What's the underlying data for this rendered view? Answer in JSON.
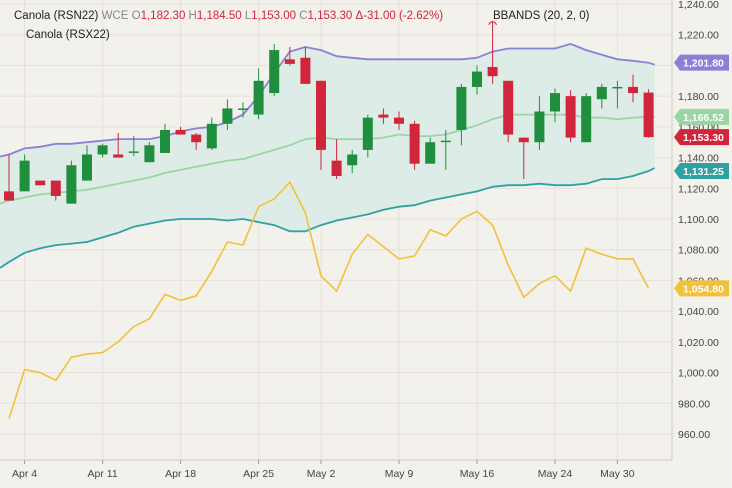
{
  "header": {
    "symbol": "Canola (RSN22)",
    "exchange": "WCE",
    "open_label": "O",
    "open": "1,182.30",
    "high_label": "H",
    "high": "1,184.50",
    "low_label": "L",
    "low": "1,153.00",
    "close_label": "C",
    "close": "1,153.30",
    "change": "Δ-31.00 (-2.62%)",
    "comparison": "Canola (RSX22)",
    "indicator": "BBANDS (20, 2, 0)"
  },
  "colors": {
    "background": "#f3f1ec",
    "band_fill": "#d9ebe6",
    "upper_band": "#8c7fd6",
    "middle_band": "#9ad6a4",
    "lower_band": "#2fa1a3",
    "comparison_line": "#f2c13a",
    "up_candle": "#1f8f3e",
    "down_candle": "#d0253a"
  },
  "price_tags": [
    {
      "value": 1201.8,
      "text": "1,201.80",
      "color": "#8c7fd6",
      "name": "upper-band-price-tag"
    },
    {
      "value": 1166.52,
      "text": "1,166.52",
      "color": "#9ad6a4",
      "name": "middle-band-price-tag"
    },
    {
      "value": 1153.3,
      "text": "1,153.30",
      "color": "#d0253a",
      "name": "last-price-tag"
    },
    {
      "value": 1131.25,
      "text": "1,131.25",
      "color": "#2fa1a3",
      "name": "lower-band-price-tag"
    },
    {
      "value": 1054.8,
      "text": "1,054.80",
      "color": "#f2c13a",
      "name": "comparison-price-tag"
    }
  ],
  "chart_data": {
    "type": "candlestick",
    "ylim": [
      950,
      1240
    ],
    "y_ticks": [
      960,
      980,
      1000,
      1020,
      1040,
      1060,
      1080,
      1100,
      1120,
      1140,
      1160,
      1180,
      1200,
      1220,
      1240
    ],
    "y_tick_labels": [
      "960.00",
      "980.00",
      "1,000.00",
      "1,020.00",
      "1,040.00",
      "1,060.00",
      "1,080.00",
      "1,100.00",
      "1,120.00",
      "1,140.00",
      "1,160.00",
      "1,180.00",
      "1,200.00",
      "1,220.00",
      "1,240.00"
    ],
    "x_tick_labels": [
      {
        "index": 1,
        "label": "Apr 4"
      },
      {
        "index": 6,
        "label": "Apr 11"
      },
      {
        "index": 11,
        "label": "Apr 18"
      },
      {
        "index": 16,
        "label": "Apr 25"
      },
      {
        "index": 20,
        "label": "May 2"
      },
      {
        "index": 25,
        "label": "May 9"
      },
      {
        "index": 30,
        "label": "May 16"
      },
      {
        "index": 35,
        "label": "May 24"
      },
      {
        "index": 39,
        "label": "May 30"
      }
    ],
    "candles": [
      {
        "o": 1118,
        "h": 1142,
        "l": 1112,
        "c": 1112
      },
      {
        "o": 1118,
        "h": 1142,
        "l": 1118,
        "c": 1138
      },
      {
        "o": 1125,
        "h": 1125,
        "l": 1122,
        "c": 1122
      },
      {
        "o": 1125,
        "h": 1125,
        "l": 1112,
        "c": 1115
      },
      {
        "o": 1110,
        "h": 1138,
        "l": 1110,
        "c": 1135
      },
      {
        "o": 1125,
        "h": 1148,
        "l": 1125,
        "c": 1142
      },
      {
        "o": 1142,
        "h": 1149,
        "l": 1140,
        "c": 1148
      },
      {
        "o": 1142,
        "h": 1156,
        "l": 1140,
        "c": 1140
      },
      {
        "o": 1144,
        "h": 1154,
        "l": 1141,
        "c": 1144
      },
      {
        "o": 1137,
        "h": 1150,
        "l": 1137,
        "c": 1148
      },
      {
        "o": 1143,
        "h": 1162,
        "l": 1143,
        "c": 1158
      },
      {
        "o": 1158,
        "h": 1160,
        "l": 1155,
        "c": 1155
      },
      {
        "o": 1155,
        "h": 1156,
        "l": 1145,
        "c": 1150
      },
      {
        "o": 1146,
        "h": 1166,
        "l": 1145,
        "c": 1162
      },
      {
        "o": 1162,
        "h": 1178,
        "l": 1158,
        "c": 1172
      },
      {
        "o": 1172,
        "h": 1176,
        "l": 1166,
        "c": 1172
      },
      {
        "o": 1168,
        "h": 1198,
        "l": 1165,
        "c": 1190
      },
      {
        "o": 1182,
        "h": 1214,
        "l": 1180,
        "c": 1210
      },
      {
        "o": 1204,
        "h": 1212,
        "l": 1200,
        "c": 1201
      },
      {
        "o": 1205,
        "h": 1212,
        "l": 1188,
        "c": 1188
      },
      {
        "o": 1190,
        "h": 1190,
        "l": 1132,
        "c": 1145
      },
      {
        "o": 1138,
        "h": 1152,
        "l": 1126,
        "c": 1128
      },
      {
        "o": 1135,
        "h": 1145,
        "l": 1130,
        "c": 1142
      },
      {
        "o": 1145,
        "h": 1168,
        "l": 1140,
        "c": 1166
      },
      {
        "o": 1168,
        "h": 1172,
        "l": 1162,
        "c": 1166
      },
      {
        "o": 1166,
        "h": 1170,
        "l": 1158,
        "c": 1162
      },
      {
        "o": 1162,
        "h": 1164,
        "l": 1132,
        "c": 1136
      },
      {
        "o": 1136,
        "h": 1153,
        "l": 1136,
        "c": 1150
      },
      {
        "o": 1151,
        "h": 1158,
        "l": 1132,
        "c": 1151
      },
      {
        "o": 1158,
        "h": 1188,
        "l": 1148,
        "c": 1186
      },
      {
        "o": 1186,
        "h": 1200,
        "l": 1181,
        "c": 1196
      },
      {
        "o": 1199,
        "h": 1220,
        "l": 1188,
        "c": 1193
      },
      {
        "o": 1190,
        "h": 1190,
        "l": 1150,
        "c": 1155
      },
      {
        "o": 1153,
        "h": 1153,
        "l": 1126,
        "c": 1150
      },
      {
        "o": 1150,
        "h": 1180,
        "l": 1145,
        "c": 1170
      },
      {
        "o": 1170,
        "h": 1185,
        "l": 1163,
        "c": 1182
      },
      {
        "o": 1180,
        "h": 1184,
        "l": 1150,
        "c": 1153
      },
      {
        "o": 1150,
        "h": 1182,
        "l": 1150,
        "c": 1180
      },
      {
        "o": 1178,
        "h": 1188,
        "l": 1172,
        "c": 1186
      },
      {
        "o": 1186,
        "h": 1190,
        "l": 1172,
        "c": 1186
      },
      {
        "o": 1186,
        "h": 1194,
        "l": 1176,
        "c": 1182
      },
      {
        "o": 1182.3,
        "h": 1184.5,
        "l": 1153.0,
        "c": 1153.3
      }
    ],
    "series": [
      {
        "name": "Upper band",
        "values": [
          1142,
          1146,
          1147,
          1149,
          1149,
          1150,
          1151,
          1152,
          1152,
          1152,
          1154,
          1157,
          1159,
          1160,
          1163,
          1168,
          1180,
          1195,
          1209,
          1212,
          1210,
          1206,
          1205,
          1204,
          1204,
          1204,
          1204,
          1204,
          1204,
          1204,
          1205,
          1209,
          1211,
          1211,
          1211,
          1211,
          1214,
          1210,
          1207,
          1204,
          1203,
          1201.8
        ]
      },
      {
        "name": "Middle band",
        "values": [
          1112,
          1114,
          1116,
          1117,
          1118,
          1119,
          1121,
          1123,
          1125,
          1127,
          1130,
          1132,
          1134,
          1136,
          1138,
          1139,
          1142,
          1145,
          1148,
          1152,
          1153,
          1152,
          1152,
          1152,
          1153,
          1155,
          1154,
          1154,
          1155,
          1158,
          1161,
          1165,
          1168,
          1168,
          1168,
          1168,
          1168,
          1166,
          1166,
          1165,
          1166,
          1166.52
        ]
      },
      {
        "name": "Lower band",
        "values": [
          1072,
          1078,
          1081,
          1083,
          1084,
          1085,
          1088,
          1091,
          1095,
          1097,
          1099,
          1100,
          1100,
          1100,
          1099,
          1100,
          1098,
          1096,
          1092,
          1092,
          1096,
          1099,
          1101,
          1103,
          1106,
          1108,
          1109,
          1112,
          1114,
          1116,
          1118,
          1121,
          1122,
          1122,
          1123,
          1122,
          1122,
          1123,
          1126,
          1126,
          1128,
          1131.25
        ]
      },
      {
        "name": "Canola (RSX22)",
        "values": [
          970,
          1002,
          1000,
          995,
          1010,
          1012,
          1013,
          1020,
          1030,
          1035,
          1051,
          1047,
          1050,
          1066,
          1085,
          1083,
          1108,
          1113,
          1124,
          1104,
          1063,
          1053,
          1077,
          1090,
          1082,
          1074,
          1076,
          1093,
          1089,
          1100,
          1105,
          1096,
          1070,
          1049,
          1058,
          1063,
          1053,
          1081,
          1077,
          1074,
          1074,
          1054.8
        ]
      }
    ]
  }
}
